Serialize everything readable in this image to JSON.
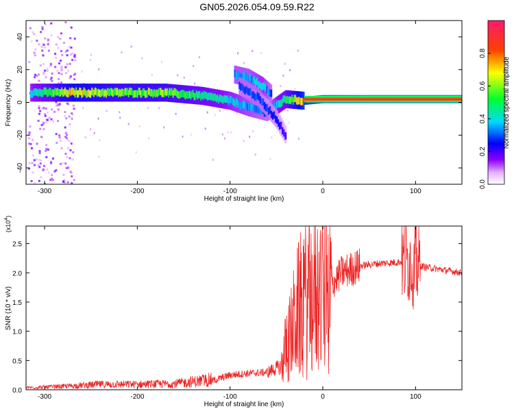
{
  "figure_title": "GN05.2026.054.09.59.R22",
  "chart_data": [
    {
      "type": "heatmap",
      "panel": "top",
      "xlabel": "Height of straight line (km)",
      "ylabel": "Frequency (Hz)",
      "xlim": [
        -320,
        150
      ],
      "ylim": [
        -50,
        50
      ],
      "xticks": [
        -300,
        -200,
        -100,
        0,
        100
      ],
      "yticks": [
        -40,
        -20,
        0,
        20,
        40
      ],
      "colorbar": {
        "label": "Normalized spectral amplitude",
        "range": [
          0,
          1
        ],
        "ticks": [
          0.0,
          0.2,
          0.4,
          0.6,
          0.8
        ]
      },
      "ridges": [
        {
          "x": [
            -315,
            -270,
            -220,
            -170,
            -130,
            -100,
            -80,
            -60,
            -40,
            -20,
            0,
            50,
            100,
            150
          ],
          "y": [
            6,
            6,
            6,
            6,
            4,
            1,
            -3,
            -6,
            2,
            1,
            2,
            2,
            2,
            2
          ],
          "amplitude": [
            0.4,
            0.7,
            0.6,
            0.6,
            0.5,
            0.4,
            0.35,
            0.3,
            0.5,
            0.8,
            0.9,
            0.95,
            0.95,
            0.95
          ]
        },
        {
          "x": [
            -95,
            -80,
            -65,
            -55
          ],
          "y": [
            17,
            15,
            10,
            5
          ],
          "amplitude": [
            0.35,
            0.35,
            0.4,
            0.3
          ]
        },
        {
          "x": [
            -90,
            -70,
            -50,
            -40
          ],
          "y": [
            10,
            3,
            -10,
            -20
          ],
          "amplitude": [
            0.3,
            0.3,
            0.25,
            0.2
          ]
        }
      ],
      "grid": false
    },
    {
      "type": "line",
      "panel": "bottom",
      "xlabel": "Height of straight line (km)",
      "ylabel": "SNR (10 * v/v)",
      "y_multiplier_label": "(x10^4)",
      "xlim": [
        -320,
        150
      ],
      "ylim": [
        0,
        2.8
      ],
      "xticks": [
        -300,
        -200,
        -100,
        0,
        100
      ],
      "yticks": [
        0.0,
        0.5,
        1.0,
        1.5,
        2.0,
        2.5
      ],
      "series": [
        {
          "color": "#ee2222",
          "x": [
            -320,
            -280,
            -240,
            -200,
            -160,
            -120,
            -100,
            -80,
            -60,
            -45,
            -40,
            -35,
            -30,
            -25,
            -20,
            -15,
            -10,
            -5,
            0,
            5,
            10,
            20,
            40,
            60,
            80,
            90,
            95,
            100,
            110,
            130,
            150
          ],
          "y": [
            0.03,
            0.05,
            0.08,
            0.08,
            0.09,
            0.15,
            0.25,
            0.28,
            0.3,
            0.4,
            0.7,
            0.9,
            1.2,
            1.4,
            1.5,
            1.55,
            1.6,
            1.65,
            1.65,
            1.75,
            1.8,
            2.0,
            2.12,
            2.16,
            2.18,
            2.2,
            2.2,
            2.15,
            2.1,
            2.05,
            2.0
          ]
        }
      ],
      "grid": false
    }
  ]
}
